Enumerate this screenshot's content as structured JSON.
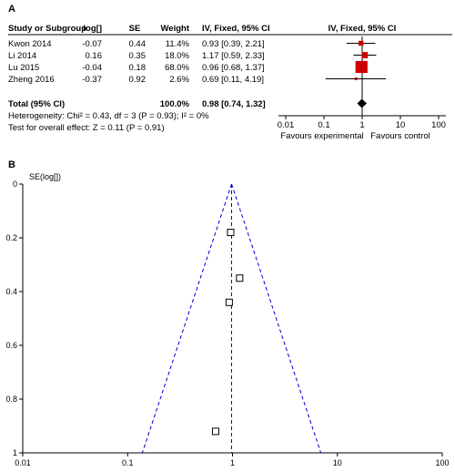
{
  "panel_a_label": "A",
  "panel_b_label": "B",
  "forest": {
    "headers": {
      "study": "Study or Subgroup",
      "log": "log[]",
      "se": "SE",
      "weight": "Weight",
      "ci": "IV, Fixed, 95% CI",
      "plot": "IV, Fixed, 95% CI"
    },
    "rows": [
      {
        "study": "Kwon 2014",
        "log": "-0.07",
        "se": "0.44",
        "weight": "11.4%",
        "ci": "0.93 [0.39, 2.21]"
      },
      {
        "study": "Li 2014",
        "log": "0.16",
        "se": "0.35",
        "weight": "18.0%",
        "ci": "1.17 [0.59, 2.33]"
      },
      {
        "study": "Lu 2015",
        "log": "-0.04",
        "se": "0.18",
        "weight": "68.0%",
        "ci": "0.96 [0.68, 1.37]"
      },
      {
        "study": "Zheng 2016",
        "log": "-0.37",
        "se": "0.92",
        "weight": "2.6%",
        "ci": "0.69 [0.11, 4.19]"
      }
    ],
    "total": {
      "label": "Total (95% CI)",
      "weight": "100.0%",
      "ci": "0.98 [0.74, 1.32]"
    },
    "heterogeneity": "Heterogeneity: Chi² = 0.43, df = 3 (P = 0.93); I² = 0%",
    "overall_effect": "Test for overall effect: Z = 0.11 (P = 0.91)",
    "axis_ticks": [
      "0.01",
      "0.1",
      "1",
      "10",
      "100"
    ],
    "favours_left": "Favours experimental",
    "favours_right": "Favours control"
  },
  "chart_data": [
    {
      "type": "forest",
      "scale": "log",
      "xlim": [
        0.01,
        100
      ],
      "studies": [
        {
          "name": "Kwon 2014",
          "estimate": 0.93,
          "lower": 0.39,
          "upper": 2.21,
          "weight": 11.4
        },
        {
          "name": "Li 2014",
          "estimate": 1.17,
          "lower": 0.59,
          "upper": 2.33,
          "weight": 18.0
        },
        {
          "name": "Lu 2015",
          "estimate": 0.96,
          "lower": 0.68,
          "upper": 1.37,
          "weight": 68.0
        },
        {
          "name": "Zheng 2016",
          "estimate": 0.69,
          "lower": 0.11,
          "upper": 4.19,
          "weight": 2.6
        }
      ],
      "total": {
        "estimate": 0.98,
        "lower": 0.74,
        "upper": 1.32
      },
      "marker_color": "#cc0000"
    },
    {
      "type": "scatter",
      "subtype": "funnel",
      "ylabel": "SE(log[])",
      "x_scale": "log",
      "xlim": [
        0.01,
        100
      ],
      "ylim": [
        0,
        1
      ],
      "y_inverted": true,
      "x_ticks": [
        "0.01",
        "0.1",
        "1",
        "10",
        "100"
      ],
      "y_ticks": [
        "0",
        "0.2",
        "0.4",
        "0.6",
        "0.8",
        "1"
      ],
      "points": [
        {
          "x": 0.93,
          "y": 0.44
        },
        {
          "x": 1.17,
          "y": 0.35
        },
        {
          "x": 0.96,
          "y": 0.18
        },
        {
          "x": 0.69,
          "y": 0.92
        }
      ],
      "pooled_x": 0.98,
      "line_color": "#0000cc"
    }
  ]
}
